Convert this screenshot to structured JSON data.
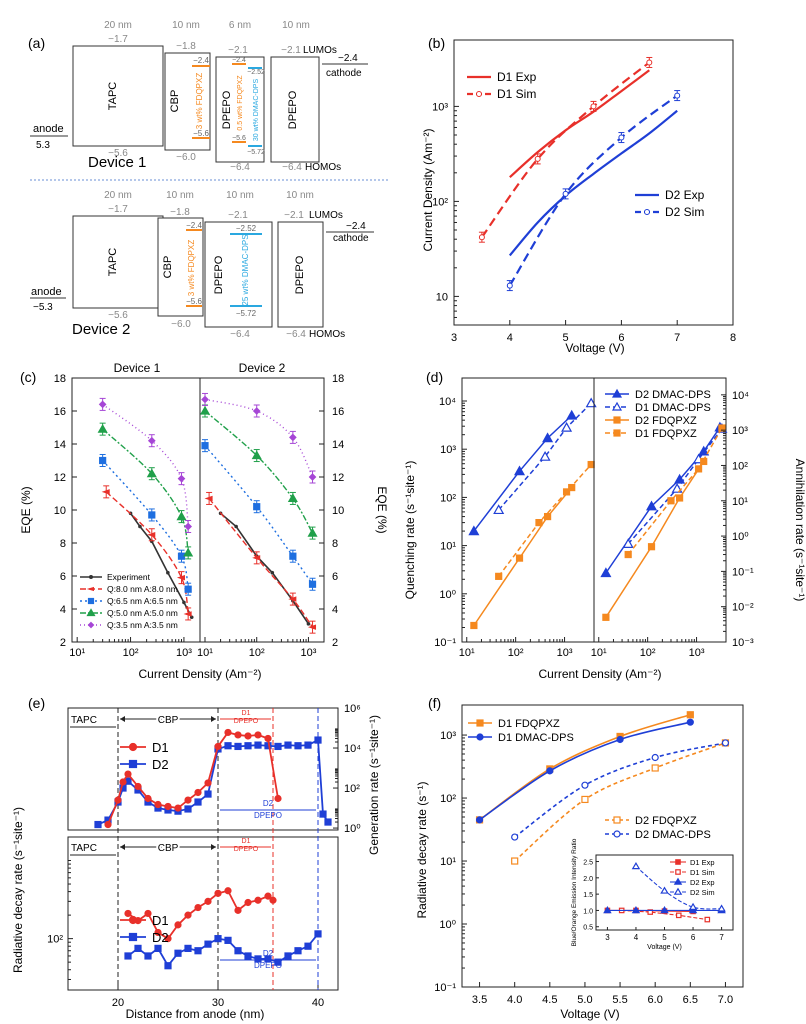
{
  "panel_labels": [
    "(a)",
    "(b)",
    "(c)",
    "(d)",
    "(e)",
    "(f)"
  ],
  "panel_a": {
    "device1_label": "Device 1",
    "device2_label": "Device 2",
    "anode": "anode",
    "anode_level": "5.3",
    "anode_level2": "−5.3",
    "cathode": "cathode",
    "cathode_level": "−2.4",
    "lumos": "LUMOs",
    "homos": "HOMOs",
    "d1_layers": [
      {
        "name": "TAPC",
        "thickness": "20 nm",
        "lumo": "−1.7",
        "homo": "−5.6"
      },
      {
        "name": "CBP",
        "thickness": "10 nm",
        "lumo": "−1.8",
        "homo": "−6.0",
        "dopant": "3 wt% FDQPXZ",
        "dopant_lumo": "−2.4",
        "dopant_homo": "−5.6"
      },
      {
        "name": "DPEPO",
        "thickness": "6 nm",
        "lumo": "−2.1",
        "homo": "−6.4",
        "dopant": "0.5 wt% FDQPXZ",
        "dopant2": "30 wt% DMAC-DPS",
        "dopant_lumo": "−2.4",
        "dopant2_lumo": "−2.52",
        "dopant_homo": "−5.6",
        "dopant2_homo": "−5.72"
      },
      {
        "name": "DPEPO",
        "thickness": "10 nm",
        "lumo": "−2.1",
        "homo": "−6.4"
      }
    ],
    "d2_layers": [
      {
        "name": "TAPC",
        "thickness": "20 nm",
        "lumo": "−1.7",
        "homo": "−5.6"
      },
      {
        "name": "CBP",
        "thickness": "10 nm",
        "lumo": "−1.8",
        "homo": "−6.0",
        "dopant": "3 wt% FDQPXZ",
        "dopant_lumo": "−2.4",
        "dopant_homo": "−5.6"
      },
      {
        "name": "DPEPO",
        "thickness": "10 nm",
        "lumo": "−2.1",
        "homo": "−6.4",
        "dopant": "25 wt% DMAC-DPS",
        "dopant_lumo": "−2.52",
        "dopant_homo": "−5.72"
      },
      {
        "name": "DPEPO",
        "thickness": "10 nm",
        "lumo": "−2.1",
        "homo": "−6.4"
      }
    ]
  },
  "chart_data": [
    {
      "id": "b",
      "type": "line",
      "xlabel": "Voltage (V)",
      "ylabel": "Current Density (Am⁻²)",
      "xlim": [
        3,
        8
      ],
      "ylim_log": [
        5,
        5000
      ],
      "xticks": [
        "3",
        "4",
        "5",
        "6",
        "7",
        "8"
      ],
      "yticks": [
        "10",
        "10²",
        "10³"
      ],
      "series": [
        {
          "name": "D1 Exp",
          "color": "#e8302a",
          "dash": false,
          "x": [
            4,
            4.5,
            5,
            5.5,
            6,
            6.5
          ],
          "y": [
            180,
            330,
            560,
            880,
            1450,
            2400
          ]
        },
        {
          "name": "D1 Sim",
          "color": "#e8302a",
          "dash": true,
          "x": [
            3.5,
            4.5,
            5.5,
            6.5
          ],
          "y": [
            42,
            280,
            1000,
            2900
          ]
        },
        {
          "name": "D2 Exp",
          "color": "#1f3fd6",
          "dash": false,
          "x": [
            4,
            4.5,
            5,
            5.5,
            6,
            6.5,
            7
          ],
          "y": [
            27,
            60,
            115,
            195,
            320,
            520,
            900
          ]
        },
        {
          "name": "D2 Sim",
          "color": "#1f3fd6",
          "dash": true,
          "x": [
            4,
            5,
            6,
            7
          ],
          "y": [
            13,
            120,
            470,
            1300
          ]
        }
      ]
    },
    {
      "id": "c",
      "type": "line",
      "panels": [
        "Device 1",
        "Device 2"
      ],
      "xlabel": "Current Density (Am⁻²)",
      "ylabel": "EQE (%)",
      "ylabel_right": "EQE (%)",
      "ylim": [
        2,
        18
      ],
      "yticks": [
        "2",
        "4",
        "6",
        "8",
        "10",
        "12",
        "14",
        "16",
        "18"
      ],
      "xticks": [
        "10¹",
        "10²",
        "10³"
      ],
      "series": [
        {
          "name": "Experiment",
          "color": "#333333",
          "marker": "dot"
        },
        {
          "name": "Q:8.0 nm A:8.0 nm",
          "color": "#e8302a",
          "marker": "arrow"
        },
        {
          "name": "Q:6.5 nm A:6.5 nm",
          "color": "#1e6fe0",
          "marker": "square"
        },
        {
          "name": "Q:5.0 nm A:5.0 nm",
          "color": "#20a04a",
          "marker": "triangle"
        },
        {
          "name": "Q:3.5 nm A:3.5 nm",
          "color": "#a646d6",
          "marker": "diamond"
        }
      ],
      "device1": {
        "experiment": {
          "x": [
            100,
            150,
            250,
            500,
            1000,
            1400
          ],
          "y": [
            9.8,
            9.0,
            8.1,
            6.2,
            4.4,
            3.5
          ]
        },
        "q80": {
          "x": [
            35,
            250,
            900,
            1200
          ],
          "y": [
            11.1,
            8.5,
            5.9,
            3.7
          ]
        },
        "q65": {
          "x": [
            30,
            250,
            900,
            1200
          ],
          "y": [
            13.0,
            9.7,
            7.2,
            5.2
          ]
        },
        "q50": {
          "x": [
            30,
            250,
            900,
            1200
          ],
          "y": [
            14.9,
            12.2,
            9.6,
            7.4
          ]
        },
        "q35": {
          "x": [
            30,
            250,
            900,
            1200
          ],
          "y": [
            16.4,
            14.2,
            11.9,
            9.0
          ]
        }
      },
      "device2": {
        "experiment": {
          "x": [
            20,
            40,
            100,
            200,
            500,
            1000
          ],
          "y": [
            9.8,
            9.0,
            7.2,
            6.2,
            4.5,
            3.1
          ]
        },
        "q80": {
          "x": [
            12,
            100,
            500,
            1200
          ],
          "y": [
            10.7,
            7.1,
            4.6,
            2.9
          ]
        },
        "q65": {
          "x": [
            10,
            100,
            500,
            1200
          ],
          "y": [
            13.9,
            10.2,
            7.2,
            5.5
          ]
        },
        "q50": {
          "x": [
            10,
            100,
            500,
            1200
          ],
          "y": [
            16.0,
            13.3,
            10.7,
            8.6
          ]
        },
        "q35": {
          "x": [
            10,
            100,
            500,
            1200
          ],
          "y": [
            16.7,
            16.0,
            14.4,
            12.0
          ]
        }
      }
    },
    {
      "id": "d",
      "type": "line",
      "xlabel": "Current Density (Am⁻²)",
      "ylabel": "Quenching rate (s⁻¹site⁻¹)",
      "ylabel_right": "Annihilation rate (s⁻¹site⁻¹)",
      "yticks_left": [
        "10⁻¹",
        "10⁰",
        "10¹",
        "10²",
        "10³",
        "10⁴"
      ],
      "yticks_right": [
        "10⁻³",
        "10⁻²",
        "10⁻¹",
        "10⁰",
        "10¹",
        "10²",
        "10³",
        "10⁴"
      ],
      "xticks": [
        "10¹",
        "10²",
        "10³"
      ],
      "series": [
        {
          "name": "D2 DMAC-DPS",
          "color": "#1f3fd6",
          "dash": false,
          "marker": "filled-triangle"
        },
        {
          "name": "D1 DMAC-DPS",
          "color": "#1f3fd6",
          "dash": true,
          "marker": "open-triangle"
        },
        {
          "name": "D2 FDQPXZ",
          "color": "#f5891f",
          "dash": false,
          "marker": "filled-square"
        },
        {
          "name": "D1 FDQPXZ",
          "color": "#f5891f",
          "dash": true,
          "marker": "filled-square"
        }
      ],
      "quenching": {
        "D2 DMAC-DPS": {
          "x": [
            14,
            120,
            450,
            1400
          ],
          "y": [
            20,
            350,
            1700,
            5000
          ]
        },
        "D1 DMAC-DPS": {
          "x": [
            45,
            400,
            1100,
            3500
          ],
          "y": [
            55,
            700,
            2800,
            9000
          ]
        },
        "D2 FDQPXZ": {
          "x": [
            14,
            120,
            450,
            1400
          ],
          "y": [
            0.22,
            5.5,
            40,
            160
          ]
        },
        "D1 FDQPXZ": {
          "x": [
            45,
            300,
            1100,
            3500
          ],
          "y": [
            2.3,
            30,
            130,
            480
          ]
        }
      },
      "annihilation": {
        "D2 DMAC-DPS": {
          "x": [
            14,
            120,
            450,
            1400,
            3000
          ],
          "y": [
            0.09,
            7,
            40,
            250,
            1200
          ]
        },
        "D1 DMAC-DPS": {
          "x": [
            40,
            400,
            1100,
            3300
          ],
          "y": [
            0.6,
            22,
            150,
            1100
          ]
        },
        "D2 FDQPXZ": {
          "x": [
            14,
            120,
            450,
            1400
          ],
          "y": [
            0.005,
            0.5,
            12,
            130
          ]
        },
        "D1 FDQPXZ": {
          "x": [
            40,
            300,
            1100,
            3300
          ],
          "y": [
            0.3,
            10,
            80,
            1150
          ]
        }
      }
    },
    {
      "id": "e",
      "type": "line",
      "xlabel": "Distance from anode (nm)",
      "ylabel": "Radiative decay rate (s⁻¹site⁻¹)",
      "ylabel_right": "Generation rate (s⁻¹site⁻¹)",
      "xlim": [
        15,
        42
      ],
      "xticks": [
        "20",
        "30",
        "40"
      ],
      "region_labels": {
        "tapc": "TAPC",
        "cbp": "CBP",
        "d1": "D1",
        "d1b": "DPEPO",
        "d2": "D2",
        "d2b": "DPEPO"
      },
      "top": {
        "yticks": [
          "10⁰",
          "10²",
          "10⁴",
          "10⁶"
        ],
        "D1": {
          "x": [
            19,
            20,
            20.5,
            21,
            22,
            23,
            24,
            25,
            26,
            27,
            28,
            29,
            30,
            31,
            32,
            33,
            34,
            35,
            36
          ],
          "y": [
            1.5,
            25,
            200,
            500,
            120,
            30,
            15,
            12,
            10,
            25,
            60,
            180,
            12000,
            60000,
            45000,
            40000,
            45000,
            30000,
            30
          ]
        },
        "D2": {
          "x": [
            18,
            19,
            20,
            20.5,
            21,
            22,
            23,
            24,
            25,
            26,
            27,
            28,
            29,
            30,
            31,
            32,
            33,
            34,
            35,
            36,
            37,
            38,
            39,
            40,
            40.5,
            41
          ],
          "y": [
            1.5,
            2.5,
            20,
            100,
            220,
            80,
            20,
            10,
            8,
            7,
            9,
            20,
            50,
            9000,
            13000,
            12000,
            13000,
            14000,
            13000,
            12000,
            14000,
            13000,
            14000,
            25000,
            5,
            2
          ]
        }
      },
      "bottom": {
        "yticks": [
          "10²"
        ],
        "D1": {
          "x": [
            21,
            22,
            23,
            24,
            25,
            26,
            27,
            28,
            29,
            30,
            31,
            32,
            33,
            34,
            35,
            35.5
          ],
          "y": [
            210,
            170,
            210,
            120,
            100,
            150,
            200,
            250,
            300,
            380,
            410,
            230,
            290,
            310,
            350,
            310
          ]
        },
        "D2": {
          "x": [
            21,
            22,
            23,
            24,
            25,
            26,
            27,
            28,
            29,
            30,
            31,
            32,
            33,
            34,
            35,
            36,
            37,
            38,
            39,
            40
          ],
          "y": [
            60,
            75,
            60,
            75,
            45,
            65,
            75,
            70,
            85,
            100,
            95,
            70,
            60,
            55,
            55,
            50,
            60,
            70,
            80,
            115
          ]
        }
      }
    },
    {
      "id": "f",
      "type": "line",
      "xlabel": "Voltage (V)",
      "ylabel": "Radiative decay rate (s⁻¹)",
      "xlim": [
        3.25,
        7.25
      ],
      "xticks": [
        "3.5",
        "4.0",
        "4.5",
        "5.0",
        "5.5",
        "6.0",
        "6.5",
        "7.0"
      ],
      "yticks": [
        "10⁻¹",
        "10⁰",
        "10¹",
        "10²",
        "10³"
      ],
      "series": [
        {
          "name": "D1 FDQPXZ",
          "color": "#f5891f",
          "dash": false,
          "x": [
            3.5,
            4.5,
            5.5,
            6.5
          ],
          "y": [
            45,
            290,
            950,
            2100
          ]
        },
        {
          "name": "D1 DMAC-DPS",
          "color": "#1f3fd6",
          "dash": false,
          "x": [
            3.5,
            4.5,
            5.5,
            6.5
          ],
          "y": [
            45,
            270,
            850,
            1600
          ]
        },
        {
          "name": "D2 FDQPXZ",
          "color": "#f5891f",
          "dash": true,
          "x": [
            4,
            5,
            6,
            7
          ],
          "y": [
            10,
            95,
            300,
            750
          ]
        },
        {
          "name": "D2 DMAC-DPS",
          "color": "#1f3fd6",
          "dash": true,
          "x": [
            4,
            5,
            6,
            7
          ],
          "y": [
            24,
            160,
            440,
            750
          ]
        }
      ],
      "inset": {
        "ylabel": "Blue/Orange Emission Intensity Ratio",
        "xlabel": "Voltage (V)",
        "xticks": [
          "3",
          "4",
          "5",
          "6",
          "7"
        ],
        "yticks": [
          "0.5",
          "1.0",
          "1.5",
          "2.0",
          "2.5"
        ],
        "series": [
          {
            "name": "D1 Exp",
            "color": "#e8302a",
            "x": [
              3,
              4,
              5,
              6
            ],
            "y": [
              1.0,
              1.0,
              0.98,
              0.97
            ]
          },
          {
            "name": "D1 Sim",
            "color": "#e8302a",
            "x": [
              3.5,
              4.5,
              5.5,
              6.5
            ],
            "y": [
              1.0,
              0.95,
              0.85,
              0.72
            ]
          },
          {
            "name": "D2 Exp",
            "color": "#1f3fd6",
            "x": [
              3,
              4,
              5,
              6,
              7
            ],
            "y": [
              1.0,
              1.0,
              1.0,
              1.0,
              1.0
            ]
          },
          {
            "name": "D2 Sim",
            "color": "#1f3fd6",
            "x": [
              4,
              5,
              6,
              7
            ],
            "y": [
              2.35,
              1.6,
              1.1,
              1.05
            ]
          }
        ]
      }
    }
  ]
}
